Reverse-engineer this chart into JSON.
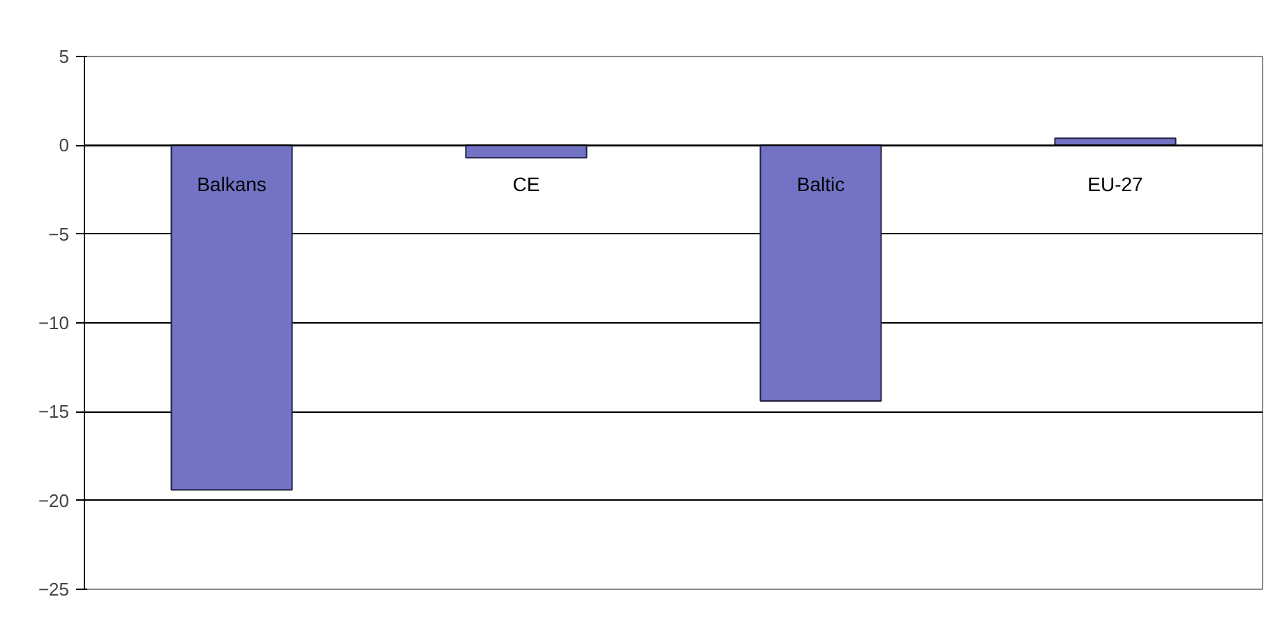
{
  "chart_data": {
    "type": "bar",
    "categories": [
      "Balkans",
      "CE",
      "Baltic",
      "EU-27"
    ],
    "values": [
      -19.4,
      -0.7,
      -14.4,
      0.4
    ],
    "color": "#7273c4",
    "ylim": [
      -25,
      5
    ],
    "yticks": [
      -25,
      -20,
      -15,
      -10,
      -5,
      0,
      5
    ],
    "grid": "y"
  }
}
